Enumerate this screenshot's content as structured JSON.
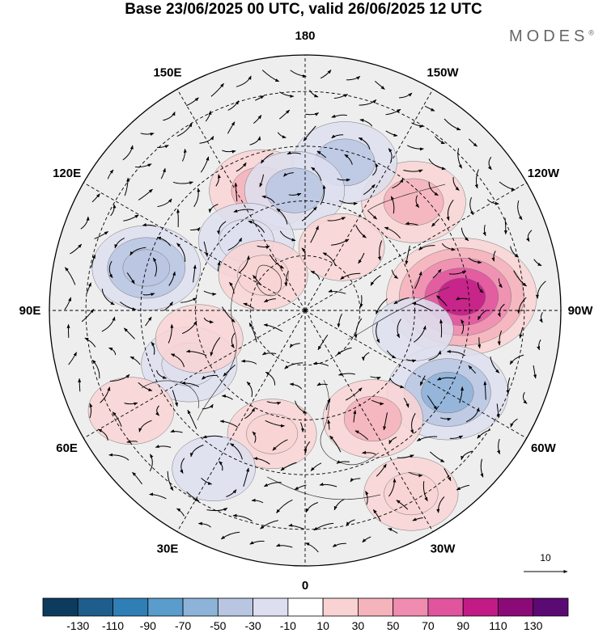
{
  "title": "Base 23/06/2025 00 UTC, valid 26/06/2025 12 UTC",
  "brand": "MODES",
  "brand_mark": "®",
  "longitude_labels": [
    {
      "text": "180",
      "lon": 180
    },
    {
      "text": "150E",
      "lon": 150
    },
    {
      "text": "120E",
      "lon": 120
    },
    {
      "text": "90E",
      "lon": 90
    },
    {
      "text": "60E",
      "lon": 60
    },
    {
      "text": "30E",
      "lon": 30
    },
    {
      "text": "0",
      "lon": 0
    },
    {
      "text": "30W",
      "lon": -30
    },
    {
      "text": "60W",
      "lon": -60
    },
    {
      "text": "90W",
      "lon": -90
    },
    {
      "text": "120W",
      "lon": -120
    },
    {
      "text": "150W",
      "lon": -150
    }
  ],
  "vector_reference": {
    "label": "10"
  },
  "colorbar": {
    "colors": [
      "#0d3b5e",
      "#1f5d8c",
      "#2f7fb6",
      "#5a9ccb",
      "#8db3d8",
      "#b9c6e2",
      "#dddff0",
      "#ffffff",
      "#f9d3d3",
      "#f5b3bc",
      "#ef8cb0",
      "#e1549e",
      "#c21b86",
      "#8c0a78",
      "#5c0a73"
    ],
    "tick_labels": [
      "-130",
      "-110",
      "-90",
      "-70",
      "-50",
      "-30",
      "-10",
      "10",
      "30",
      "50",
      "70",
      "90",
      "110",
      "130"
    ]
  },
  "anomaly_centers": [
    {
      "lon": -95,
      "lat": 47,
      "value": 95
    },
    {
      "lon": -135,
      "lat": 48,
      "value": 40
    },
    {
      "lon": -60,
      "lat": 45,
      "value": -60
    },
    {
      "lon": -32,
      "lat": 55,
      "value": 35
    },
    {
      "lon": -30,
      "lat": 32,
      "value": 28
    },
    {
      "lon": 160,
      "lat": 55,
      "value": 40
    },
    {
      "lon": -165,
      "lat": 48,
      "value": -40
    },
    {
      "lon": 175,
      "lat": 57,
      "value": -35
    },
    {
      "lon": 105,
      "lat": 45,
      "value": -45
    },
    {
      "lon": 140,
      "lat": 65,
      "value": -30
    },
    {
      "lon": 65,
      "lat": 55,
      "value": -30
    },
    {
      "lon": 75,
      "lat": 60,
      "value": 20
    },
    {
      "lon": 60,
      "lat": 35,
      "value": 18
    },
    {
      "lon": 15,
      "lat": 55,
      "value": 22
    },
    {
      "lon": 130,
      "lat": 75,
      "value": 22
    },
    {
      "lon": -150,
      "lat": 70,
      "value": 18
    },
    {
      "lon": 30,
      "lat": 40,
      "value": -15
    },
    {
      "lon": -80,
      "lat": 60,
      "value": -12
    }
  ]
}
